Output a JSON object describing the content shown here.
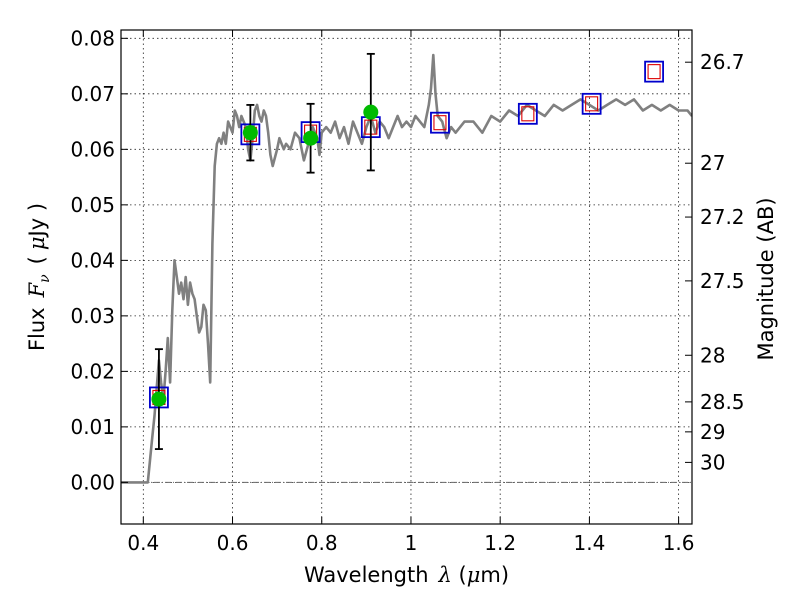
{
  "chart_data": {
    "type": "scatter",
    "xlabel_text": "Wavelength",
    "xlabel_symbol": "λ",
    "xlabel_unit_open": " (",
    "xlabel_unit_mu": "μ",
    "xlabel_unit_close": "m)",
    "ylabel_text": "Flux",
    "ylabel_symbol": "F",
    "ylabel_subscript": "ν",
    "ylabel_unit_open": "(",
    "ylabel_unit_mu": "μ",
    "ylabel_unit_close": "Jy )",
    "y2label": "Magnitude (AB)",
    "xlim": [
      0.35,
      1.63
    ],
    "ylim": [
      -0.0075,
      0.0815
    ],
    "xticks": [
      0.4,
      0.6,
      0.8,
      1.0,
      1.2,
      1.4,
      1.6
    ],
    "xtick_labels": [
      "0.4",
      "0.6",
      "0.8",
      "1",
      "1.2",
      "1.4",
      "1.6"
    ],
    "yticks": [
      0.0,
      0.01,
      0.02,
      0.03,
      0.04,
      0.05,
      0.06,
      0.07,
      0.08
    ],
    "ytick_labels": [
      "0.00",
      "0.01",
      "0.02",
      "0.03",
      "0.04",
      "0.05",
      "0.06",
      "0.07",
      "0.08"
    ],
    "magnitude_ticks": [
      {
        "label": "26.7",
        "flux": 0.0757
      },
      {
        "label": "27",
        "flux": 0.0575
      },
      {
        "label": "27.2",
        "flux": 0.0478
      },
      {
        "label": "27.5",
        "flux": 0.0363
      },
      {
        "label": "28",
        "flux": 0.0229
      },
      {
        "label": "28.5",
        "flux": 0.0145
      },
      {
        "label": "29",
        "flux": 0.0091
      },
      {
        "label": "30",
        "flux": 0.0036
      }
    ],
    "grid": true,
    "colors": {
      "model": "#808080",
      "observed": "#00bb00",
      "model_photometry": "#0000cc",
      "model_photometry_inner": "#dd0000",
      "errorbar": "#000000",
      "zero_line": "#666666"
    },
    "series": [
      {
        "kind": "line",
        "x": [
          0.35,
          0.41,
          0.415,
          0.42,
          0.425,
          0.43,
          0.435,
          0.44,
          0.445,
          0.45,
          0.455,
          0.46,
          0.465,
          0.47,
          0.475,
          0.48,
          0.485,
          0.49,
          0.495,
          0.5,
          0.505,
          0.51,
          0.515,
          0.52,
          0.525,
          0.53,
          0.535,
          0.54,
          0.545,
          0.55,
          0.555,
          0.56,
          0.565,
          0.57,
          0.575,
          0.58,
          0.585,
          0.59,
          0.6,
          0.605,
          0.61,
          0.615,
          0.62,
          0.63,
          0.635,
          0.64,
          0.645,
          0.65,
          0.655,
          0.66,
          0.665,
          0.67,
          0.675,
          0.68,
          0.685,
          0.69,
          0.7,
          0.705,
          0.71,
          0.715,
          0.72,
          0.73,
          0.74,
          0.75,
          0.76,
          0.77,
          0.78,
          0.79,
          0.795,
          0.8,
          0.81,
          0.82,
          0.83,
          0.84,
          0.85,
          0.86,
          0.87,
          0.88,
          0.89,
          0.9,
          0.91,
          0.92,
          0.93,
          0.94,
          0.95,
          0.96,
          0.97,
          0.98,
          0.99,
          1.0,
          1.01,
          1.02,
          1.03,
          1.04,
          1.045,
          1.05,
          1.055,
          1.06,
          1.07,
          1.08,
          1.09,
          1.1,
          1.12,
          1.14,
          1.16,
          1.18,
          1.2,
          1.22,
          1.24,
          1.26,
          1.28,
          1.3,
          1.32,
          1.34,
          1.36,
          1.38,
          1.4,
          1.42,
          1.44,
          1.46,
          1.48,
          1.5,
          1.52,
          1.54,
          1.56,
          1.58,
          1.6,
          1.62,
          1.63
        ],
        "y": [
          0.0,
          0.0,
          0.004,
          0.008,
          0.012,
          0.017,
          0.022,
          0.018,
          0.015,
          0.02,
          0.026,
          0.018,
          0.031,
          0.04,
          0.037,
          0.034,
          0.036,
          0.033,
          0.037,
          0.032,
          0.036,
          0.034,
          0.033,
          0.03,
          0.027,
          0.028,
          0.032,
          0.031,
          0.025,
          0.018,
          0.043,
          0.057,
          0.061,
          0.062,
          0.061,
          0.063,
          0.061,
          0.065,
          0.063,
          0.067,
          0.066,
          0.064,
          0.066,
          0.064,
          0.06,
          0.058,
          0.062,
          0.067,
          0.068,
          0.066,
          0.065,
          0.067,
          0.066,
          0.063,
          0.059,
          0.057,
          0.06,
          0.062,
          0.061,
          0.06,
          0.061,
          0.06,
          0.063,
          0.062,
          0.058,
          0.061,
          0.064,
          0.062,
          0.059,
          0.063,
          0.064,
          0.063,
          0.065,
          0.062,
          0.064,
          0.061,
          0.065,
          0.063,
          0.061,
          0.064,
          0.066,
          0.063,
          0.065,
          0.064,
          0.062,
          0.064,
          0.066,
          0.064,
          0.065,
          0.064,
          0.066,
          0.065,
          0.064,
          0.068,
          0.071,
          0.077,
          0.07,
          0.066,
          0.065,
          0.062,
          0.064,
          0.063,
          0.065,
          0.065,
          0.063,
          0.066,
          0.065,
          0.067,
          0.066,
          0.068,
          0.067,
          0.066,
          0.068,
          0.067,
          0.068,
          0.069,
          0.068,
          0.067,
          0.068,
          0.069,
          0.068,
          0.069,
          0.067,
          0.068,
          0.067,
          0.068,
          0.067,
          0.067,
          0.066
        ]
      },
      {
        "kind": "observed",
        "points": [
          {
            "x": 0.435,
            "y": 0.015,
            "err": 0.009
          },
          {
            "x": 0.64,
            "y": 0.063,
            "err": 0.005
          },
          {
            "x": 0.775,
            "y": 0.062,
            "err": 0.0062
          },
          {
            "x": 0.91,
            "y": 0.0667,
            "err": 0.0105
          }
        ]
      },
      {
        "kind": "model_photometry",
        "points": [
          {
            "x": 0.435,
            "y": 0.0153
          },
          {
            "x": 0.64,
            "y": 0.0627
          },
          {
            "x": 0.775,
            "y": 0.0631
          },
          {
            "x": 0.91,
            "y": 0.064
          },
          {
            "x": 1.065,
            "y": 0.0648
          },
          {
            "x": 1.262,
            "y": 0.0664
          },
          {
            "x": 1.405,
            "y": 0.0682
          },
          {
            "x": 1.545,
            "y": 0.074
          }
        ]
      }
    ]
  }
}
